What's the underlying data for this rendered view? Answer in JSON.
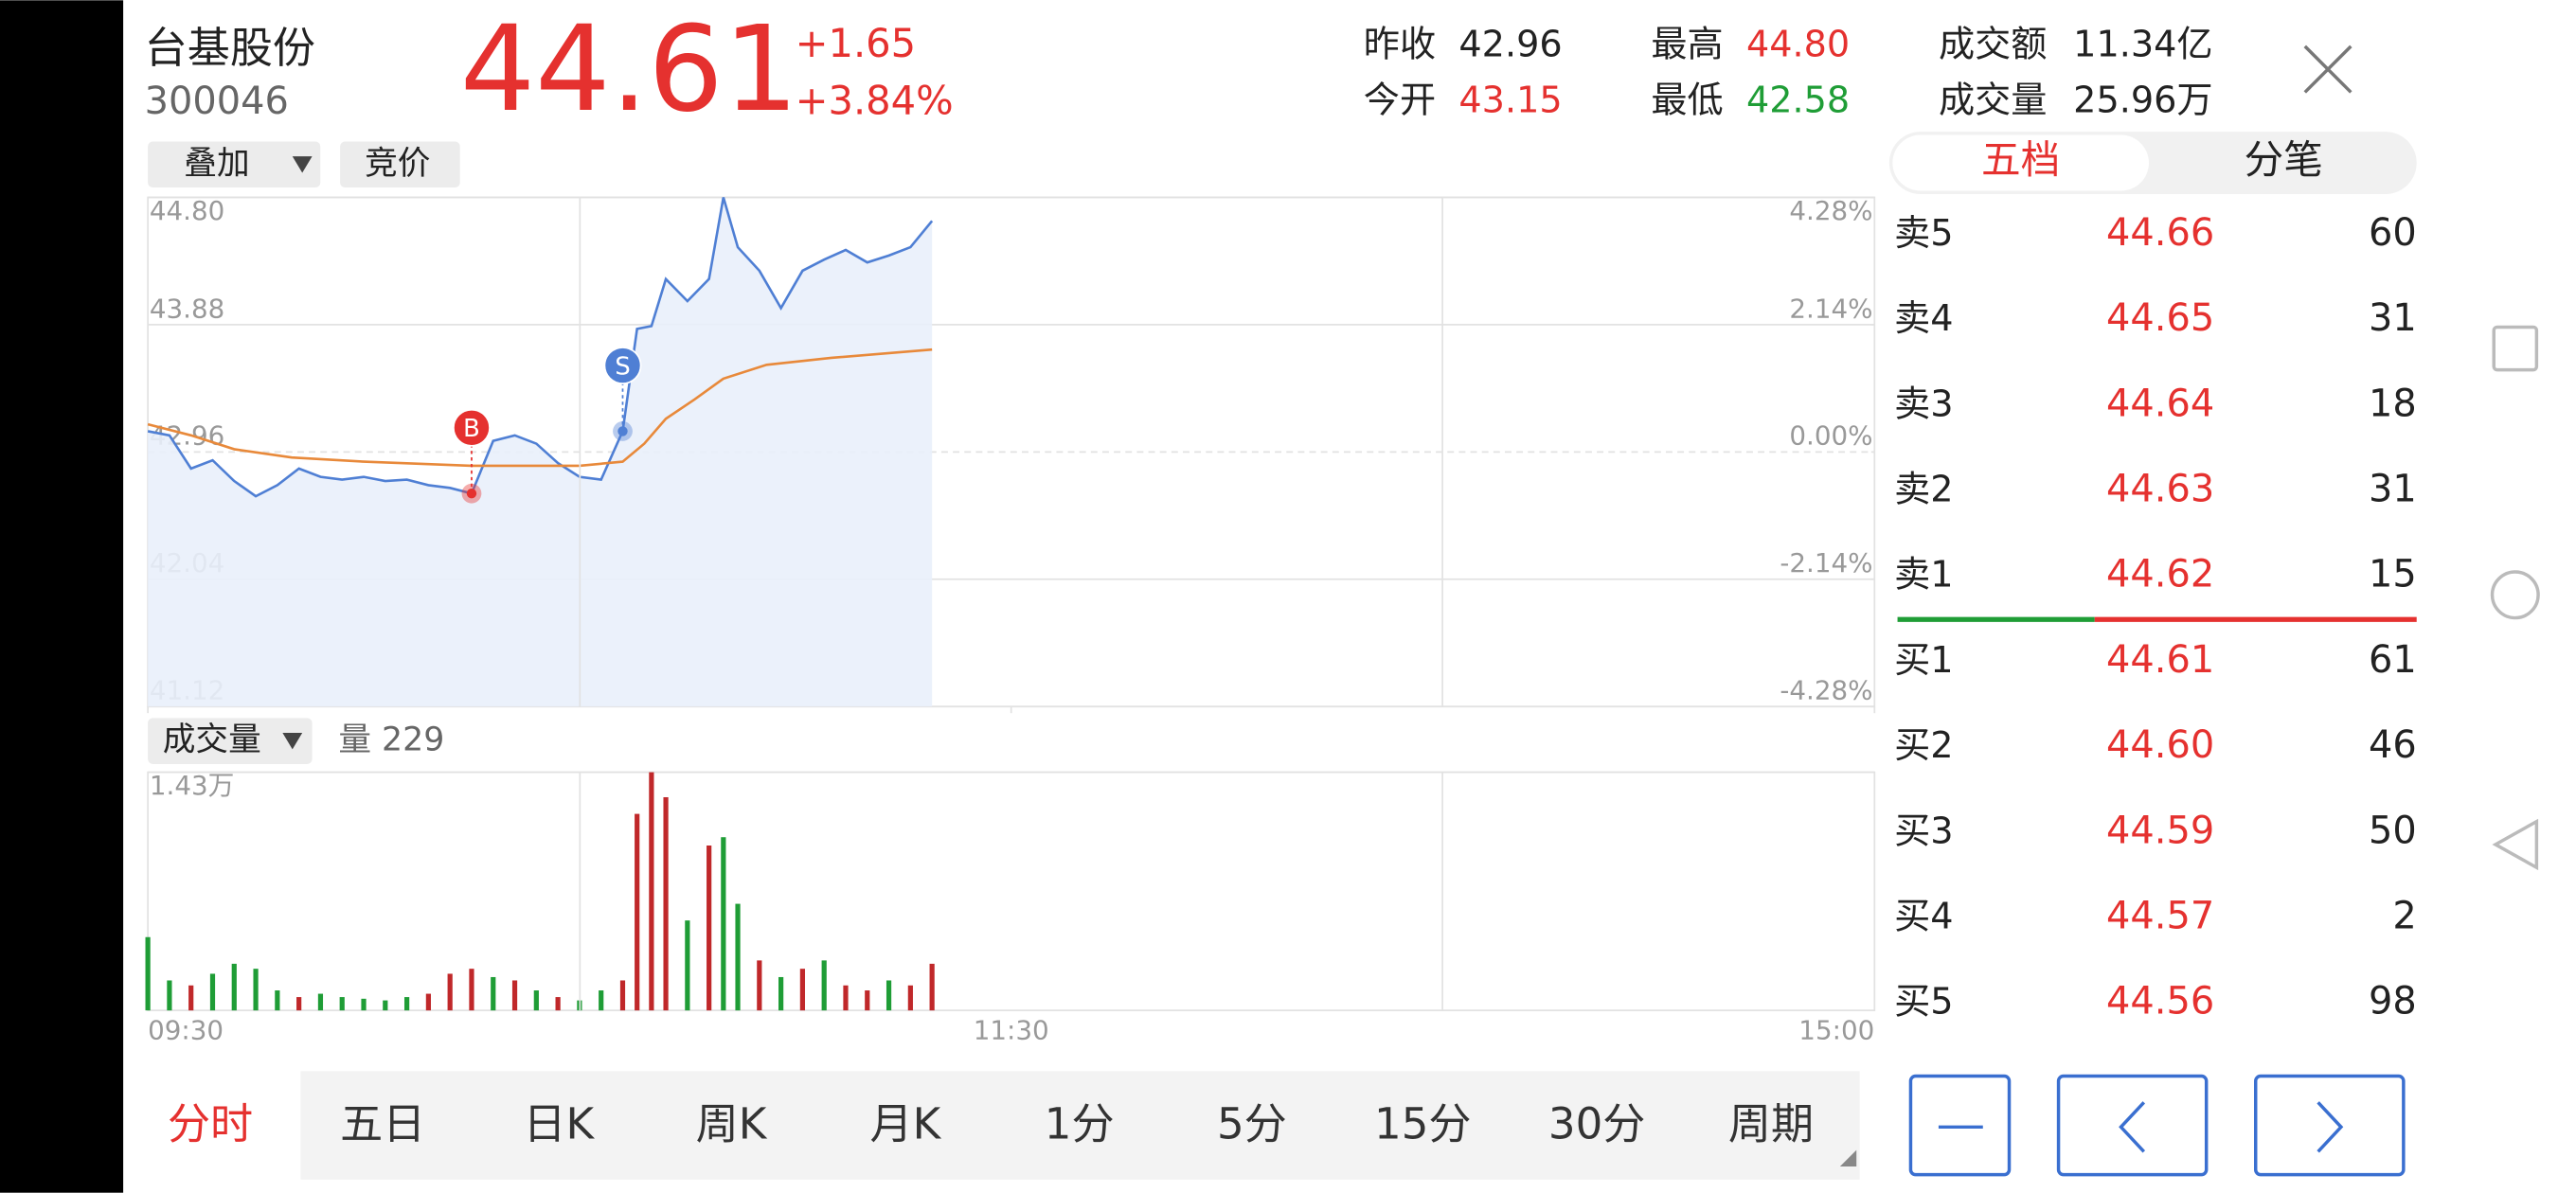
{
  "header": {
    "name": "台基股份",
    "code": "300046",
    "price": "44.61",
    "change": "+1.65",
    "change_pct": "+3.84%",
    "stats": [
      {
        "label": "昨收",
        "value": "42.96"
      },
      {
        "label": "今开",
        "value": "43.15"
      },
      {
        "label": "最高",
        "value": "44.80"
      },
      {
        "label": "最低",
        "value": "42.58"
      },
      {
        "label": "成交额",
        "value": "11.34亿"
      },
      {
        "label": "成交量",
        "value": "25.96万"
      }
    ]
  },
  "controls": {
    "overlay": "叠加",
    "auction": "竞价",
    "volume_menu": "成交量",
    "volume_info": "量 229"
  },
  "chart_data": [
    {
      "type": "line",
      "xlim": [
        0,
        240
      ],
      "xticks": [
        {
          "value": 0,
          "label": "09:30"
        },
        {
          "value": 120,
          "label": "11:30"
        },
        {
          "value": 240,
          "label": "15:00"
        }
      ],
      "ylim": [
        41.12,
        44.8
      ],
      "yticks": [
        {
          "value": 44.8,
          "label": "44.80"
        },
        43.88,
        42.96,
        42.04,
        41.12
      ],
      "y2lim": [
        -4.28,
        4.28
      ],
      "y2ticks": [
        {
          "value": 4.28,
          "label": "4.28%"
        },
        {
          "value": 2.14,
          "label": "2.14%"
        },
        {
          "value": 0,
          "label": "0.00%"
        },
        {
          "value": -2.14,
          "label": "-2.14%"
        },
        {
          "value": -4.28,
          "label": "-4.28%"
        }
      ],
      "series": [
        {
          "color": "#4f7fd4",
          "x": [
            0,
            3,
            6,
            9,
            12,
            15,
            18,
            21,
            24,
            27,
            30,
            33,
            36,
            39,
            42,
            45,
            48,
            51,
            54,
            57,
            60,
            63,
            66,
            68,
            70,
            72,
            75,
            78,
            80,
            82,
            85,
            88,
            91,
            94,
            97,
            100,
            103,
            106,
            109
          ],
          "values": [
            43.11,
            43.08,
            42.84,
            42.9,
            42.75,
            42.64,
            42.72,
            42.84,
            42.78,
            42.76,
            42.78,
            42.75,
            42.76,
            42.72,
            42.7,
            42.66,
            43.04,
            43.08,
            43.02,
            42.88,
            42.78,
            42.76,
            43.11,
            43.85,
            43.87,
            44.21,
            44.05,
            44.21,
            44.8,
            44.44,
            44.27,
            44.0,
            44.27,
            44.35,
            44.42,
            44.33,
            44.38,
            44.44,
            44.63
          ]
        },
        {
          "color": "#e8893a",
          "x": [
            0,
            6,
            12,
            20,
            30,
            45,
            60,
            66,
            69,
            72,
            76,
            80,
            86,
            95,
            109
          ],
          "values": [
            43.16,
            43.08,
            42.98,
            42.92,
            42.89,
            42.86,
            42.86,
            42.89,
            43.02,
            43.2,
            43.34,
            43.49,
            43.59,
            43.64,
            43.7
          ]
        }
      ],
      "markers": [
        {
          "label": "B",
          "x": 45,
          "value": 42.66,
          "color": "#e5312f"
        },
        {
          "label": "S",
          "x": 66,
          "value": 43.11,
          "color": "#4f7fd4"
        }
      ]
    },
    {
      "type": "bar",
      "xlim": [
        0,
        240
      ],
      "ylim": [
        0,
        14300
      ],
      "yticks": [
        {
          "value": 14300,
          "label": "1.43万"
        }
      ],
      "x": [
        0,
        3,
        6,
        9,
        12,
        15,
        18,
        21,
        24,
        27,
        30,
        33,
        36,
        39,
        42,
        45,
        48,
        51,
        54,
        57,
        60,
        63,
        66,
        68,
        70,
        72,
        75,
        78,
        80,
        82,
        85,
        88,
        91,
        94,
        97,
        100,
        103,
        106,
        109
      ],
      "values": [
        4400,
        1800,
        1500,
        2200,
        2800,
        2500,
        1200,
        800,
        1000,
        800,
        700,
        600,
        800,
        1000,
        2200,
        2500,
        2000,
        1800,
        1200,
        800,
        600,
        1200,
        1800,
        11800,
        14300,
        12800,
        5400,
        9900,
        10400,
        6400,
        3000,
        2000,
        2500,
        3000,
        1500,
        1200,
        1800,
        1500,
        2800
      ],
      "colors": [
        "#1f9d36",
        "#1f9d36",
        "#c0282a",
        "#1f9d36",
        "#1f9d36",
        "#1f9d36",
        "#1f9d36",
        "#c0282a",
        "#1f9d36",
        "#1f9d36",
        "#1f9d36",
        "#1f9d36",
        "#1f9d36",
        "#c0282a",
        "#c0282a",
        "#c0282a",
        "#1f9d36",
        "#c0282a",
        "#1f9d36",
        "#c0282a",
        "#1f9d36",
        "#1f9d36",
        "#c0282a",
        "#c0282a",
        "#c0282a",
        "#c0282a",
        "#1f9d36",
        "#c0282a",
        "#1f9d36",
        "#1f9d36",
        "#c0282a",
        "#1f9d36",
        "#c0282a",
        "#1f9d36",
        "#c0282a",
        "#c0282a",
        "#1f9d36",
        "#c0282a",
        "#c0282a"
      ]
    }
  ],
  "order_book": {
    "tabs": [
      "五档",
      "分笔"
    ],
    "rows": [
      {
        "label": "卖5",
        "price": "44.66",
        "volume": 60
      },
      {
        "label": "卖4",
        "price": "44.65",
        "volume": 31
      },
      {
        "label": "卖3",
        "price": "44.64",
        "volume": 18
      },
      {
        "label": "卖2",
        "price": "44.63",
        "volume": 31
      },
      {
        "label": "卖1",
        "price": "44.62",
        "volume": 15
      },
      {
        "label": "买1",
        "price": "44.61",
        "volume": 61
      },
      {
        "label": "买2",
        "price": "44.60",
        "volume": 46
      },
      {
        "label": "买3",
        "price": "44.59",
        "volume": 50
      },
      {
        "label": "买4",
        "price": "44.57",
        "volume": 2
      },
      {
        "label": "买5",
        "price": "44.56",
        "volume": 98
      }
    ]
  },
  "bottom_tabs": [
    "分时",
    "五日",
    "日K",
    "周K",
    "月K",
    "1分",
    "5分",
    "15分",
    "30分",
    "周期"
  ]
}
